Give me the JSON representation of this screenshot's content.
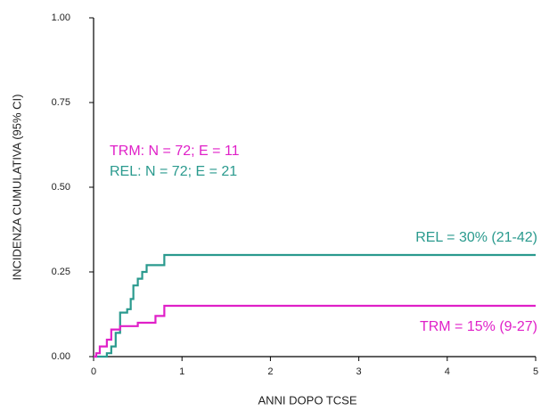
{
  "chart_data": {
    "type": "line",
    "xlabel": "ANNI DOPO TCSE",
    "ylabel": "INCIDENZA CUMULATIVA (95% CI)",
    "xlim": [
      0,
      5
    ],
    "ylim": [
      0,
      1
    ],
    "xticks": [
      0,
      1,
      2,
      3,
      4,
      5
    ],
    "yticks": [
      {
        "value": 0,
        "label": "0.00"
      },
      {
        "value": 0.25,
        "label": "0.25"
      },
      {
        "value": 0.5,
        "label": "0.50"
      },
      {
        "value": 0.75,
        "label": "0.75"
      },
      {
        "value": 1,
        "label": "1.00"
      }
    ],
    "series": [
      {
        "color": "#2a9a8e",
        "x": [
          0,
          0.15,
          0.15,
          0.2,
          0.2,
          0.25,
          0.25,
          0.3,
          0.3,
          0.38,
          0.38,
          0.42,
          0.42,
          0.45,
          0.45,
          0.5,
          0.5,
          0.55,
          0.55,
          0.6,
          0.6,
          0.8,
          0.8,
          5
        ],
        "values": [
          0,
          0,
          0.01,
          0.01,
          0.03,
          0.03,
          0.07,
          0.07,
          0.13,
          0.13,
          0.14,
          0.14,
          0.17,
          0.17,
          0.21,
          0.21,
          0.23,
          0.23,
          0.25,
          0.25,
          0.27,
          0.27,
          0.3,
          0.3
        ]
      },
      {
        "color": "#e020c8",
        "x": [
          0,
          0.03,
          0.03,
          0.07,
          0.07,
          0.15,
          0.15,
          0.2,
          0.2,
          0.3,
          0.3,
          0.5,
          0.5,
          0.7,
          0.7,
          0.8,
          0.8,
          5
        ],
        "values": [
          0,
          0,
          0.01,
          0.01,
          0.03,
          0.03,
          0.05,
          0.05,
          0.08,
          0.08,
          0.09,
          0.09,
          0.1,
          0.1,
          0.12,
          0.12,
          0.15,
          0.15
        ]
      }
    ],
    "annotations": [
      {
        "text": "TRM: N = 72; E = 11",
        "color": "#e020c8"
      },
      {
        "text": "REL:  N = 72; E = 21",
        "color": "#2a9a8e"
      },
      {
        "text": "REL = 30% (21-42)",
        "color": "#2a9a8e"
      },
      {
        "text": "TRM = 15% (9-27)",
        "color": "#e020c8"
      }
    ]
  }
}
